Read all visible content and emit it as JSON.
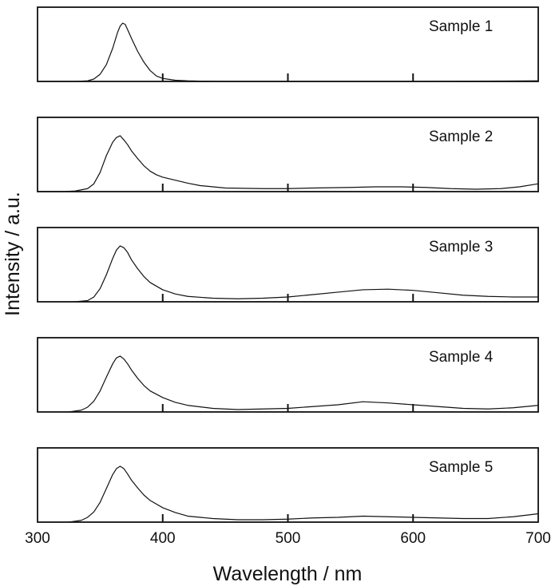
{
  "chart_data": {
    "type": "line",
    "xlabel": "Wavelength / nm",
    "ylabel": "Intensity / a.u.",
    "xlim": [
      300,
      700
    ],
    "x_ticks": [
      300,
      400,
      500,
      600,
      700
    ],
    "x_tick_labels": [
      "300",
      "400",
      "500",
      "600",
      "700"
    ],
    "y_scale": "arbitrary units, values normalized to each panel maximum",
    "ylim": [
      0,
      1.05
    ],
    "grid": false,
    "legend": "none",
    "panel_layout": "five stacked panels sharing the wavelength axis",
    "series": [
      {
        "name": "Sample 1",
        "x": [
          300,
          320,
          330,
          340,
          345,
          350,
          355,
          360,
          364,
          366,
          368,
          370,
          372,
          375,
          380,
          385,
          390,
          395,
          400,
          410,
          420,
          430,
          450,
          500,
          550,
          600,
          650,
          700
        ],
        "y": [
          0,
          0,
          0,
          0.01,
          0.04,
          0.12,
          0.28,
          0.55,
          0.82,
          0.92,
          0.97,
          0.95,
          0.86,
          0.72,
          0.5,
          0.32,
          0.18,
          0.09,
          0.05,
          0.02,
          0.01,
          0.005,
          0,
          0,
          0,
          0,
          0.005,
          0.01
        ]
      },
      {
        "name": "Sample 2",
        "x": [
          300,
          320,
          330,
          340,
          345,
          350,
          355,
          360,
          363,
          366,
          369,
          372,
          375,
          380,
          385,
          390,
          395,
          400,
          410,
          420,
          430,
          450,
          480,
          500,
          520,
          550,
          570,
          590,
          610,
          630,
          650,
          670,
          685,
          700
        ],
        "y": [
          0,
          0,
          0.01,
          0.05,
          0.13,
          0.32,
          0.6,
          0.82,
          0.9,
          0.93,
          0.86,
          0.78,
          0.68,
          0.55,
          0.43,
          0.34,
          0.28,
          0.24,
          0.19,
          0.14,
          0.1,
          0.06,
          0.05,
          0.05,
          0.06,
          0.07,
          0.08,
          0.08,
          0.07,
          0.05,
          0.04,
          0.05,
          0.08,
          0.13
        ]
      },
      {
        "name": "Sample 3",
        "x": [
          330,
          340,
          345,
          350,
          355,
          360,
          363,
          366,
          369,
          372,
          375,
          380,
          385,
          390,
          400,
          410,
          420,
          440,
          460,
          480,
          500,
          520,
          540,
          560,
          580,
          600,
          620,
          640,
          660,
          680,
          700
        ],
        "y": [
          0,
          0.02,
          0.08,
          0.22,
          0.45,
          0.72,
          0.86,
          0.93,
          0.9,
          0.82,
          0.7,
          0.55,
          0.42,
          0.32,
          0.2,
          0.13,
          0.09,
          0.06,
          0.05,
          0.06,
          0.08,
          0.12,
          0.16,
          0.2,
          0.21,
          0.19,
          0.15,
          0.11,
          0.09,
          0.08,
          0.08
        ]
      },
      {
        "name": "Sample 4",
        "x": [
          325,
          335,
          340,
          345,
          350,
          355,
          360,
          363,
          366,
          369,
          372,
          375,
          380,
          385,
          390,
          400,
          410,
          420,
          440,
          460,
          480,
          500,
          520,
          540,
          560,
          580,
          600,
          620,
          640,
          660,
          680,
          700
        ],
        "y": [
          0,
          0.03,
          0.08,
          0.18,
          0.35,
          0.58,
          0.8,
          0.9,
          0.93,
          0.88,
          0.8,
          0.7,
          0.56,
          0.44,
          0.35,
          0.24,
          0.16,
          0.11,
          0.06,
          0.04,
          0.05,
          0.06,
          0.09,
          0.12,
          0.17,
          0.15,
          0.12,
          0.09,
          0.06,
          0.05,
          0.07,
          0.11
        ]
      },
      {
        "name": "Sample 5",
        "x": [
          325,
          335,
          340,
          345,
          350,
          355,
          360,
          363,
          366,
          369,
          372,
          375,
          380,
          385,
          390,
          400,
          410,
          420,
          440,
          460,
          480,
          500,
          520,
          540,
          560,
          580,
          600,
          620,
          640,
          660,
          680,
          700
        ],
        "y": [
          0,
          0.03,
          0.08,
          0.17,
          0.33,
          0.56,
          0.79,
          0.89,
          0.93,
          0.89,
          0.8,
          0.7,
          0.57,
          0.45,
          0.36,
          0.24,
          0.16,
          0.1,
          0.06,
          0.04,
          0.04,
          0.05,
          0.07,
          0.08,
          0.1,
          0.09,
          0.08,
          0.07,
          0.06,
          0.06,
          0.09,
          0.14
        ]
      }
    ],
    "colors": {
      "line": "#111111",
      "frame": "#111111",
      "background": "#ffffff"
    }
  }
}
